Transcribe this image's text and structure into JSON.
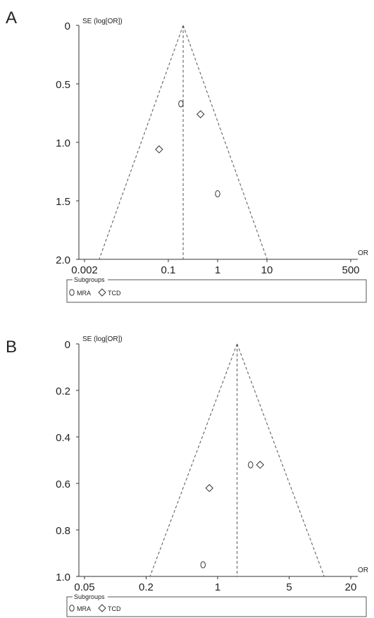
{
  "chart_data": [
    {
      "panel": "A",
      "type": "scatter",
      "xlabel": "OR",
      "ylabel": "SE (log[OR])",
      "x_scale": "log",
      "xlim": [
        0.002,
        500
      ],
      "ylim": [
        0,
        2.0
      ],
      "y_inverted": true,
      "x_ticks": [
        0.002,
        0.1,
        1,
        10,
        500
      ],
      "x_tick_labels": [
        "0.002",
        "0.1",
        "1",
        "10",
        "500"
      ],
      "y_ticks": [
        0,
        0.5,
        1.0,
        1.5,
        2.0
      ],
      "y_tick_labels": [
        "0",
        "0.5",
        "1.0",
        "1.5",
        "2.0"
      ],
      "pooled_or": 0.2,
      "legend": {
        "title": "Subgroups",
        "entries": [
          "MRA",
          "TCD"
        ],
        "placement": "bottom"
      },
      "series": [
        {
          "name": "MRA",
          "marker": "circle",
          "points": [
            {
              "x": 0.18,
              "y": 0.67
            },
            {
              "x": 1.0,
              "y": 1.44
            }
          ]
        },
        {
          "name": "TCD",
          "marker": "diamond",
          "points": [
            {
              "x": 0.45,
              "y": 0.76
            },
            {
              "x": 0.065,
              "y": 1.06
            }
          ]
        }
      ]
    },
    {
      "panel": "B",
      "type": "scatter",
      "xlabel": "OR",
      "ylabel": "SE (log[OR])",
      "x_scale": "log",
      "xlim": [
        0.05,
        20
      ],
      "ylim": [
        0,
        1.0
      ],
      "y_inverted": true,
      "x_ticks": [
        0.05,
        0.2,
        1,
        5,
        20
      ],
      "x_tick_labels": [
        "0.05",
        "0.2",
        "1",
        "5",
        "20"
      ],
      "y_ticks": [
        0,
        0.2,
        0.4,
        0.6,
        0.8,
        1.0
      ],
      "y_tick_labels": [
        "0",
        "0.2",
        "0.4",
        "0.6",
        "0.8",
        "1.0"
      ],
      "pooled_or": 1.55,
      "legend": {
        "title": "Subgroups",
        "entries": [
          "MRA",
          "TCD"
        ],
        "placement": "bottom"
      },
      "series": [
        {
          "name": "MRA",
          "marker": "circle",
          "points": [
            {
              "x": 2.1,
              "y": 0.52
            },
            {
              "x": 0.72,
              "y": 0.95
            }
          ]
        },
        {
          "name": "TCD",
          "marker": "diamond",
          "points": [
            {
              "x": 2.6,
              "y": 0.52
            },
            {
              "x": 0.83,
              "y": 0.62
            }
          ]
        }
      ]
    }
  ]
}
